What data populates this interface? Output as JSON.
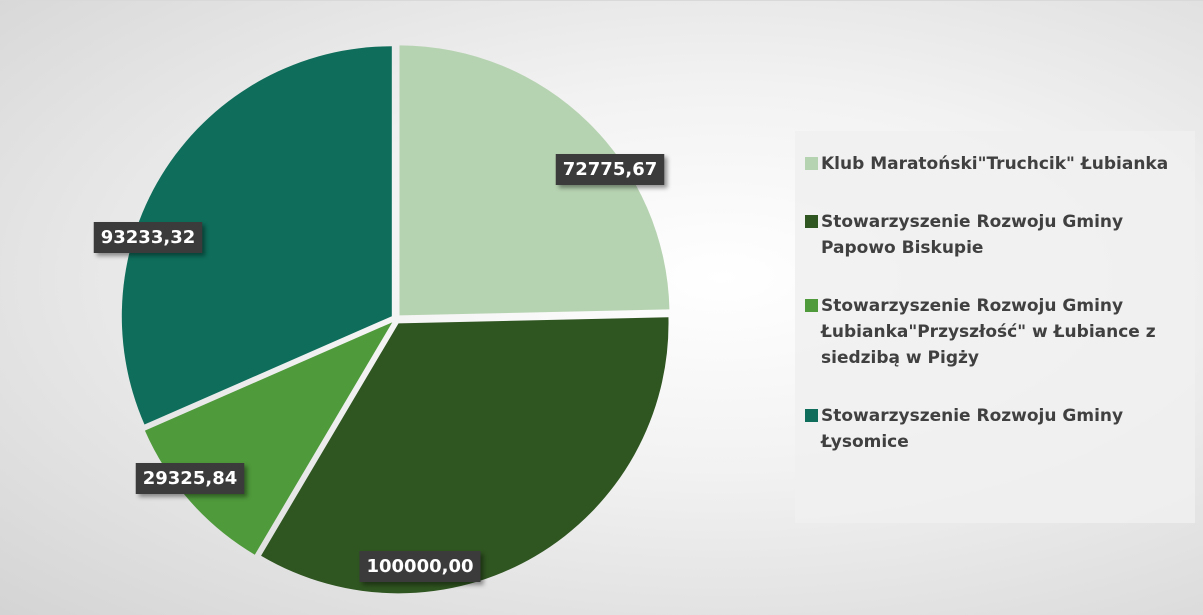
{
  "chart_data": {
    "type": "pie",
    "categories": [
      "Klub Maratoński\"Truchcik\" Łubianka",
      "Stowarzyszenie Rozwoju Gminy Papowo Biskupie",
      "Stowarzyszenie Rozwoju Gminy Łubianka\"Przyszłość\" w Łubiance z siedzibą w Pigży",
      "Stowarzyszenie Rozwoju Gminy Łysomice"
    ],
    "values": [
      72775.67,
      100000,
      29325.84,
      93233.32
    ],
    "value_labels": [
      "72775,67",
      "100000,00",
      "29325,84",
      "93233,32"
    ],
    "colors": [
      "#b6d3b1",
      "#2f5520",
      "#4f9a3b",
      "#0e6e5b"
    ],
    "legend": "right"
  }
}
